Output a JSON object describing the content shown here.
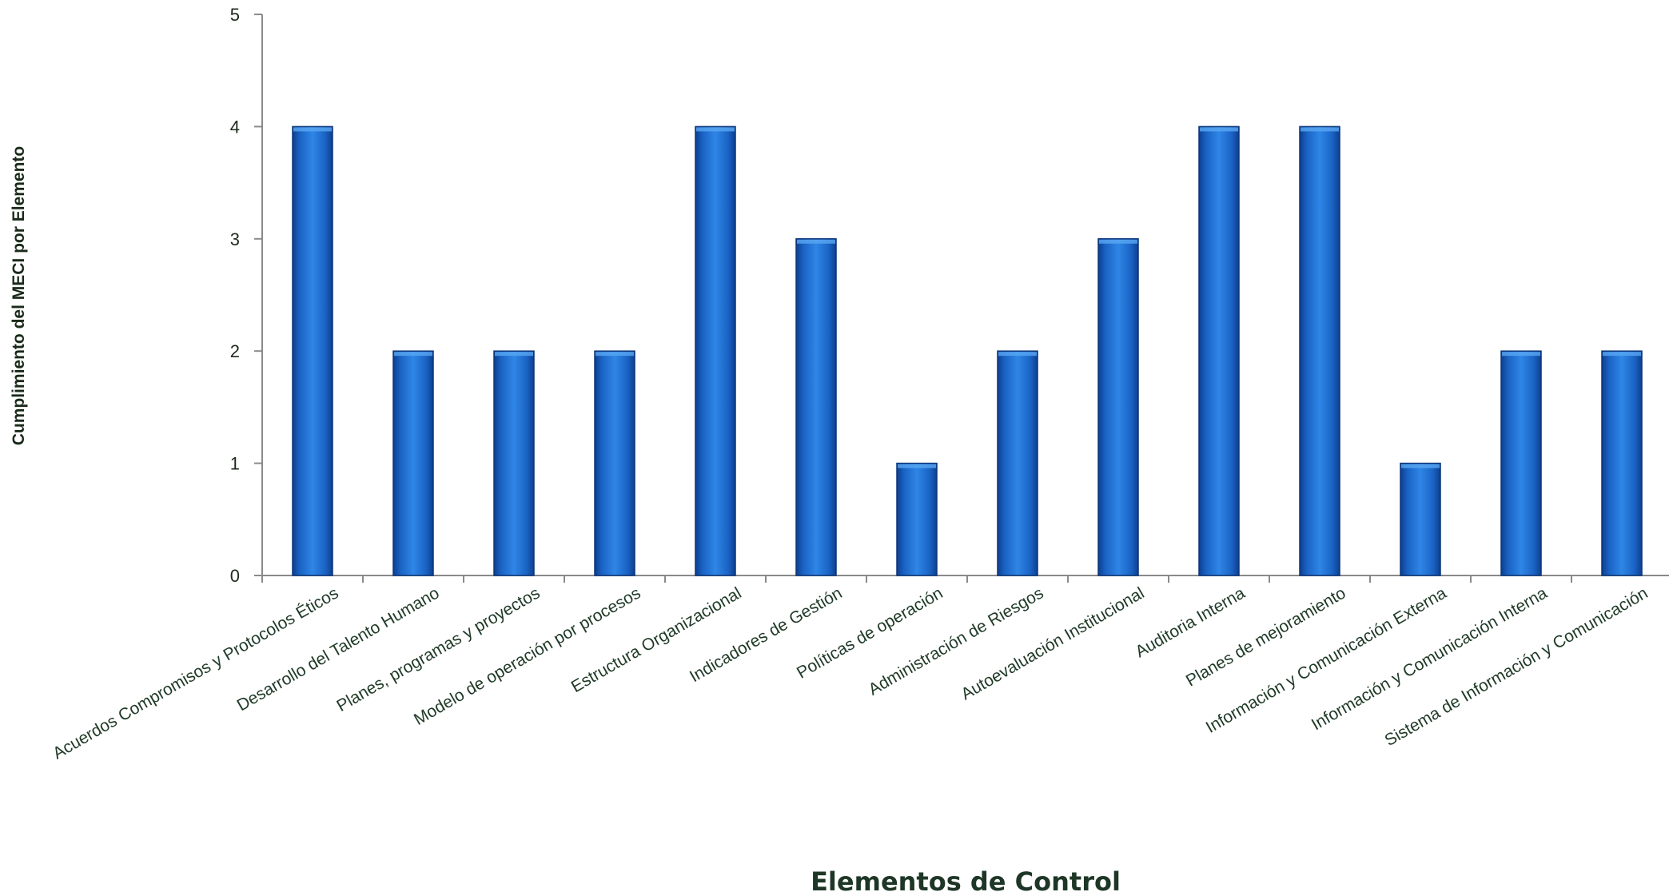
{
  "chart_data": {
    "type": "bar",
    "title": "",
    "xlabel": "Elementos de Control",
    "ylabel": "Cumplimiento del MECI por Elemento",
    "ylim": [
      0,
      5
    ],
    "yticks": [
      "0",
      "1",
      "2",
      "3",
      "4",
      "5"
    ],
    "grid": false,
    "legend": "none",
    "bar_color": "#1a6fd0",
    "categories": [
      "Acuerdos Compromisos y Protocolos  Éticos",
      "Desarrollo del Talento Humano",
      "Planes, programas y proyectos",
      "Modelo de operación por procesos",
      "Estructura Organizacional",
      "Indicadores de Gestión",
      "Políticas de operación",
      "Administración de Riesgos",
      "Autoevaluación Institucional",
      "Auditoria Interna",
      "Planes de mejoramiento",
      "Información y  Comunicación Externa",
      "Información y Comunicación Interna",
      "Sistema de Información y  Comunicación"
    ],
    "values": [
      4,
      2,
      2,
      2,
      4,
      3,
      1,
      2,
      3,
      4,
      4,
      1,
      2,
      2
    ]
  }
}
